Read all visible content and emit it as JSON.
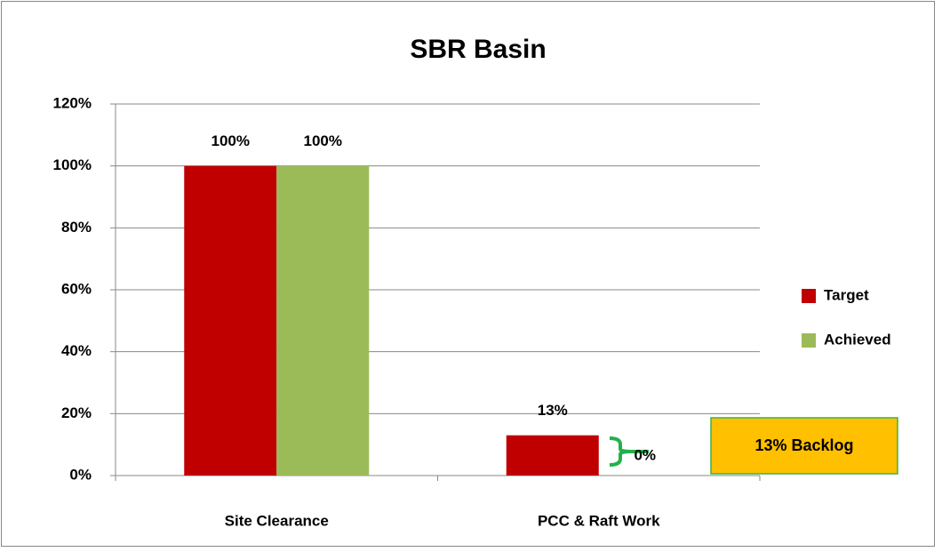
{
  "chart_data": {
    "type": "bar",
    "title": "SBR Basin",
    "categories": [
      "Site Clearance",
      "PCC & Raft Work"
    ],
    "series": [
      {
        "name": "Target",
        "color": "#c00000",
        "values": [
          100,
          13
        ],
        "value_labels": [
          "100%",
          "13%"
        ]
      },
      {
        "name": "Achieved",
        "color": "#9bbb59",
        "values": [
          100,
          0
        ],
        "value_labels": [
          "100%",
          "0%"
        ]
      }
    ],
    "ylim": [
      0,
      120
    ],
    "yticks": [
      {
        "value": 0,
        "label": "0%"
      },
      {
        "value": 20,
        "label": "20%"
      },
      {
        "value": 40,
        "label": "40%"
      },
      {
        "value": 60,
        "label": "60%"
      },
      {
        "value": 80,
        "label": "80%"
      },
      {
        "value": 100,
        "label": "100%"
      },
      {
        "value": 120,
        "label": "120%"
      }
    ],
    "grid": true,
    "legend": "right",
    "annotation": "13% Backlog"
  }
}
